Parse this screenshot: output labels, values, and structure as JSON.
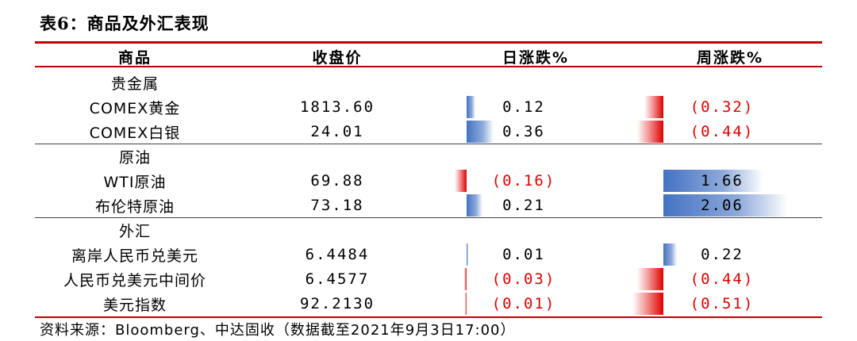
{
  "title": "表6：商品及外汇表现",
  "headers": {
    "item": "商品",
    "close": "收盘价",
    "daily": "日涨跌%",
    "weekly": "周涨跌%"
  },
  "groups": [
    {
      "name": "贵金属",
      "rows": [
        {
          "name": "COMEX黄金",
          "close": "1813.60",
          "daily": "0.12",
          "daily_value": 0.12,
          "weekly": "(0.32)",
          "weekly_value": -0.32
        },
        {
          "name": "COMEX白银",
          "close": "24.01",
          "daily": "0.36",
          "daily_value": 0.36,
          "weekly": "(0.44)",
          "weekly_value": -0.44
        }
      ]
    },
    {
      "name": "原油",
      "rows": [
        {
          "name": "WTI原油",
          "close": "69.88",
          "daily": "(0.16)",
          "daily_value": -0.16,
          "weekly": "1.66",
          "weekly_value": 1.66
        },
        {
          "name": "布伦特原油",
          "close": "73.18",
          "daily": "0.21",
          "daily_value": 0.21,
          "weekly": "2.06",
          "weekly_value": 2.06
        }
      ]
    },
    {
      "name": "外汇",
      "rows": [
        {
          "name": "离岸人民币兑美元",
          "close": "6.4484",
          "daily": "0.01",
          "daily_value": 0.01,
          "weekly": "0.22",
          "weekly_value": 0.22
        },
        {
          "name": "人民币兑美元中间价",
          "close": "6.4577",
          "daily": "(0.03)",
          "daily_value": -0.03,
          "weekly": "(0.44)",
          "weekly_value": -0.44
        },
        {
          "name": "美元指数",
          "close": "92.2130",
          "daily": "(0.01)",
          "daily_value": -0.01,
          "weekly": "(0.51)",
          "weekly_value": -0.51
        }
      ]
    }
  ],
  "source": "资料来源：Bloomberg、中达固收（数据截至2021年9月3日17:00）",
  "colors": {
    "accent_rule": "#c00000",
    "positive_bar": "#4472c4",
    "negative_bar": "#e00000",
    "negative_text": "#e00000"
  }
}
